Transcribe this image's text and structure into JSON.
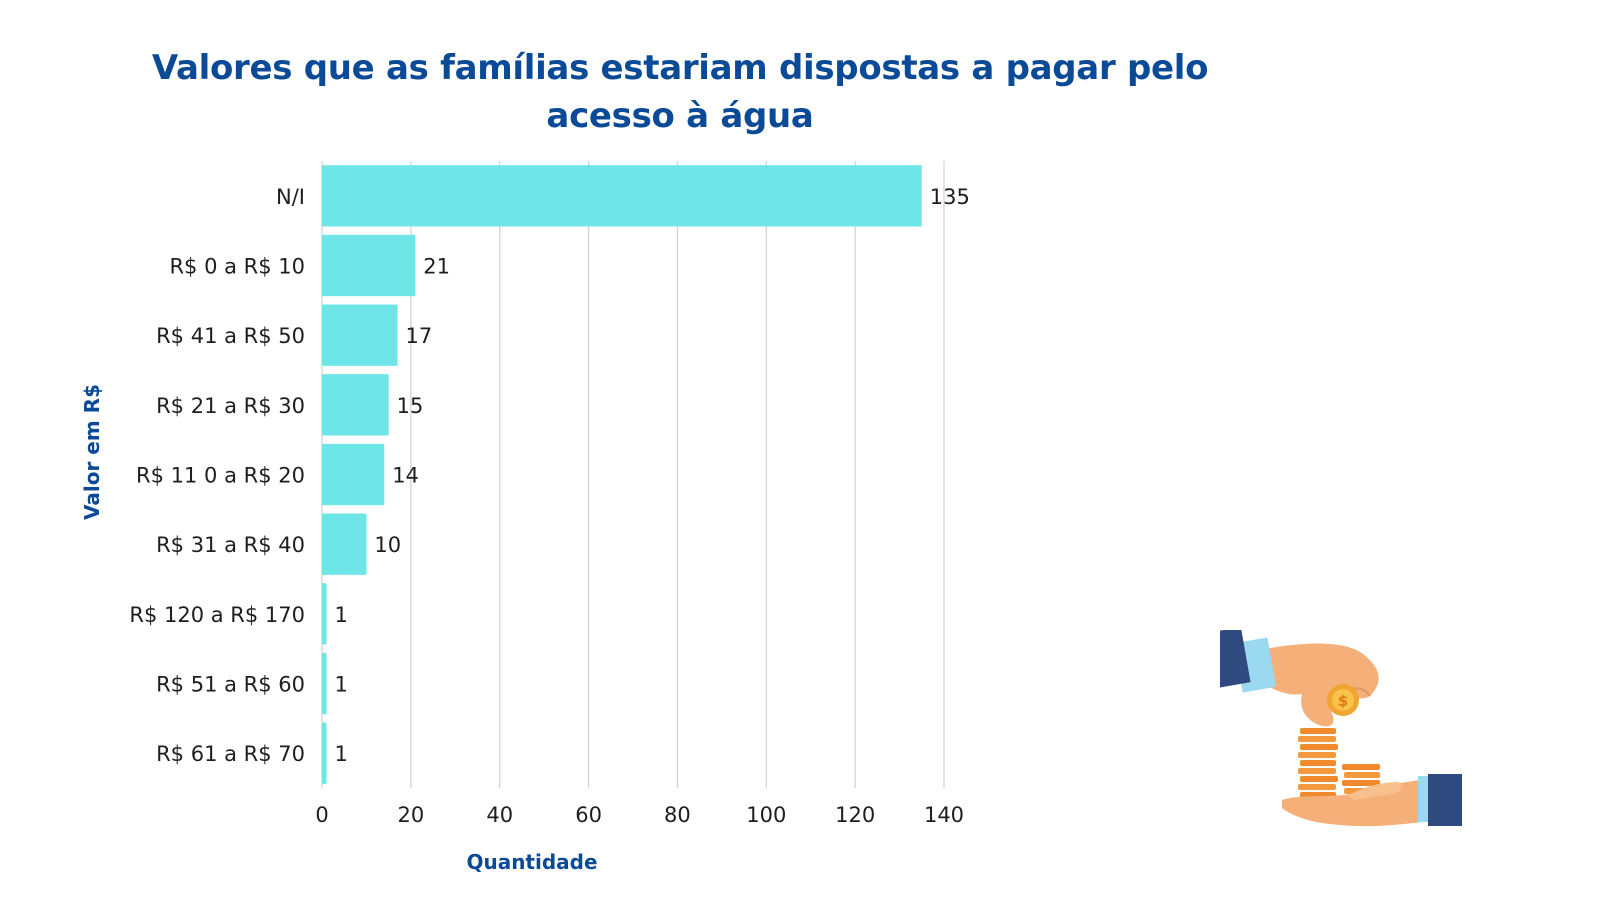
{
  "chart_data": {
    "type": "bar",
    "orientation": "horizontal",
    "title": "Valores que as famílias estariam dispostas a pagar pelo acesso à água",
    "xlabel": "Quantidade",
    "ylabel": "Valor em R$",
    "categories": [
      "N/I",
      "R$ 0 a R$ 10",
      "R$ 41 a R$ 50",
      "R$ 21 a R$ 30",
      "R$ 11 0 a R$ 20",
      "R$ 31 a R$ 40",
      "R$ 120 a R$ 170",
      "R$ 51 a R$ 60",
      "R$ 61 a R$ 70"
    ],
    "values": [
      135,
      21,
      17,
      15,
      14,
      10,
      1,
      1,
      1
    ],
    "xlim": [
      0,
      140
    ],
    "xticks": [
      "0",
      "20",
      "40",
      "60",
      "80",
      "100",
      "120",
      "140"
    ],
    "grid": "vertical",
    "data_labels": true,
    "bar_color": "#6ee6e8",
    "grid_color": "#d0d0d0",
    "title_color": "#0b4a96"
  },
  "illustration": {
    "icon": "hands-coins-illustration",
    "coin_symbol": "$"
  }
}
